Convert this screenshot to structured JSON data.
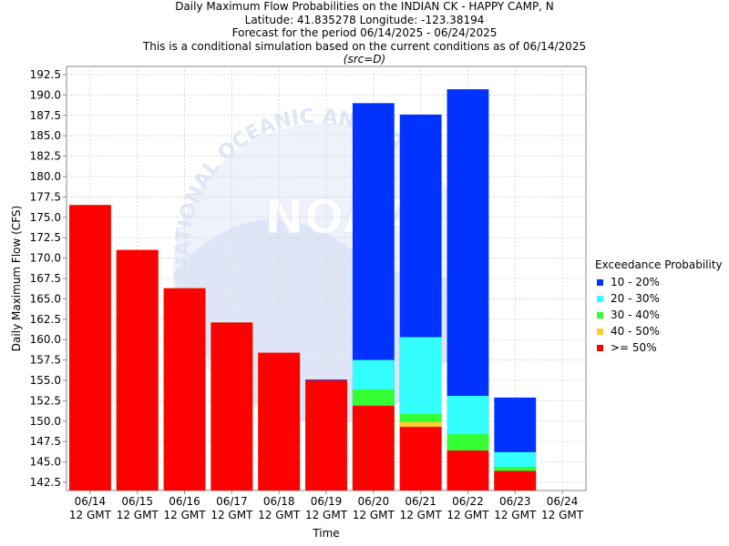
{
  "header": {
    "title": "Daily Maximum Flow Probabilities on the INDIAN CK - HAPPY CAMP, N",
    "location": "Latitude: 41.835278 Longitude: -123.38194",
    "period": "Forecast for the period 06/14/2025 - 06/24/2025",
    "condition": "This is a conditional simulation based on the current conditions as of 06/14/2025",
    "source": "(src=D)"
  },
  "legend": {
    "title": "Exceedance Probability",
    "items": [
      {
        "label": "10 - 20%",
        "color": "#0033ff"
      },
      {
        "label": "20 - 30%",
        "color": "#33ffff"
      },
      {
        "label": "30 - 40%",
        "color": "#33ff33"
      },
      {
        "label": "40 - 50%",
        "color": "#ffcc33"
      },
      {
        "label": ">= 50%",
        "color": "#ff0000"
      }
    ]
  },
  "chart_data": {
    "type": "bar",
    "stacked": true,
    "xlabel": "Time",
    "ylabel": "Daily Maximum Flow (CFS)",
    "ylim": [
      141.5,
      193.5
    ],
    "yticks": [
      142.5,
      145.0,
      147.5,
      150.0,
      152.5,
      155.0,
      157.5,
      160.0,
      162.5,
      165.0,
      167.5,
      170.0,
      172.5,
      175.0,
      177.5,
      180.0,
      182.5,
      185.0,
      187.5,
      190.0,
      192.5
    ],
    "grid": true,
    "legend_position": "right",
    "categories": [
      {
        "date": "06/14",
        "time": "12 GMT"
      },
      {
        "date": "06/15",
        "time": "12 GMT"
      },
      {
        "date": "06/16",
        "time": "12 GMT"
      },
      {
        "date": "06/17",
        "time": "12 GMT"
      },
      {
        "date": "06/18",
        "time": "12 GMT"
      },
      {
        "date": "06/19",
        "time": "12 GMT"
      },
      {
        "date": "06/20",
        "time": "12 GMT"
      },
      {
        "date": "06/21",
        "time": "12 GMT"
      },
      {
        "date": "06/22",
        "time": "12 GMT"
      },
      {
        "date": "06/23",
        "time": "12 GMT"
      },
      {
        "date": "06/24",
        "time": "12 GMT"
      }
    ],
    "bars": [
      {
        "date": "06/14",
        ">= 50%": 176.5,
        "40 - 50%": 176.5,
        "30 - 40%": 176.5,
        "20 - 30%": 176.5,
        "10 - 20%": 176.5
      },
      {
        "date": "06/15",
        ">= 50%": 171.0,
        "40 - 50%": 171.0,
        "30 - 40%": 171.0,
        "20 - 30%": 171.0,
        "10 - 20%": 171.0
      },
      {
        "date": "06/16",
        ">= 50%": 166.3,
        "40 - 50%": 166.3,
        "30 - 40%": 166.3,
        "20 - 30%": 166.3,
        "10 - 20%": 166.3
      },
      {
        "date": "06/17",
        ">= 50%": 162.1,
        "40 - 50%": 162.1,
        "30 - 40%": 162.1,
        "20 - 30%": 162.1,
        "10 - 20%": 162.1
      },
      {
        "date": "06/18",
        ">= 50%": 158.4,
        "40 - 50%": 158.4,
        "30 - 40%": 158.4,
        "20 - 30%": 158.4,
        "10 - 20%": 158.4
      },
      {
        "date": "06/19",
        ">= 50%": 155.0,
        "40 - 50%": 155.0,
        "30 - 40%": 155.0,
        "20 - 30%": 155.0,
        "10 - 20%": 155.1
      },
      {
        "date": "06/20",
        ">= 50%": 151.9,
        "40 - 50%": 151.9,
        "30 - 40%": 153.9,
        "20 - 30%": 157.5,
        "10 - 20%": 189.0
      },
      {
        "date": "06/21",
        ">= 50%": 149.3,
        "40 - 50%": 149.9,
        "30 - 40%": 150.9,
        "20 - 30%": 160.3,
        "10 - 20%": 187.6
      },
      {
        "date": "06/22",
        ">= 50%": 146.4,
        "40 - 50%": 146.4,
        "30 - 40%": 148.4,
        "20 - 30%": 153.1,
        "10 - 20%": 190.7
      },
      {
        "date": "06/23",
        ">= 50%": 143.9,
        "40 - 50%": 143.9,
        "30 - 40%": 144.4,
        "20 - 30%": 146.2,
        "10 - 20%": 152.9
      }
    ],
    "watermark": "NOAA",
    "watermark_text": "NATIONAL OCEANIC AND ATMOSPHERIC"
  }
}
